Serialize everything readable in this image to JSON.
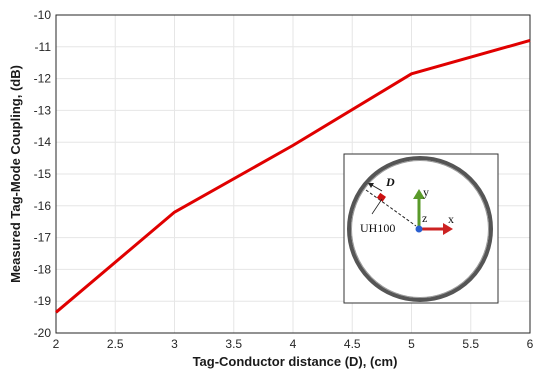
{
  "chart_data": {
    "type": "line",
    "title": "",
    "xlabel": "Tag-Conductor distance (D), (cm)",
    "ylabel": "Measured Tag-Mode Coupling, (dB)",
    "xlim": [
      2,
      6
    ],
    "ylim": [
      -20,
      -10
    ],
    "xticks": [
      "2",
      "2.5",
      "3",
      "3.5",
      "4",
      "4.5",
      "5",
      "5.5",
      "6"
    ],
    "yticks": [
      "-10",
      "-11",
      "-12",
      "-13",
      "-14",
      "-15",
      "-16",
      "-17",
      "-18",
      "-19",
      "-20"
    ],
    "grid": true,
    "series": [
      {
        "color": "#e00000",
        "x": [
          2,
          3,
          4,
          5,
          6
        ],
        "y": [
          -19.35,
          -16.2,
          -14.1,
          -11.85,
          -10.8
        ]
      }
    ]
  },
  "inset": {
    "distance_label": "D",
    "tag_label": "UH100",
    "axis_x": "x",
    "axis_y": "y",
    "axis_z": "z",
    "colors": {
      "x": "#cc2222",
      "y": "#5a9a2a",
      "z": "#2a5fd0"
    }
  }
}
